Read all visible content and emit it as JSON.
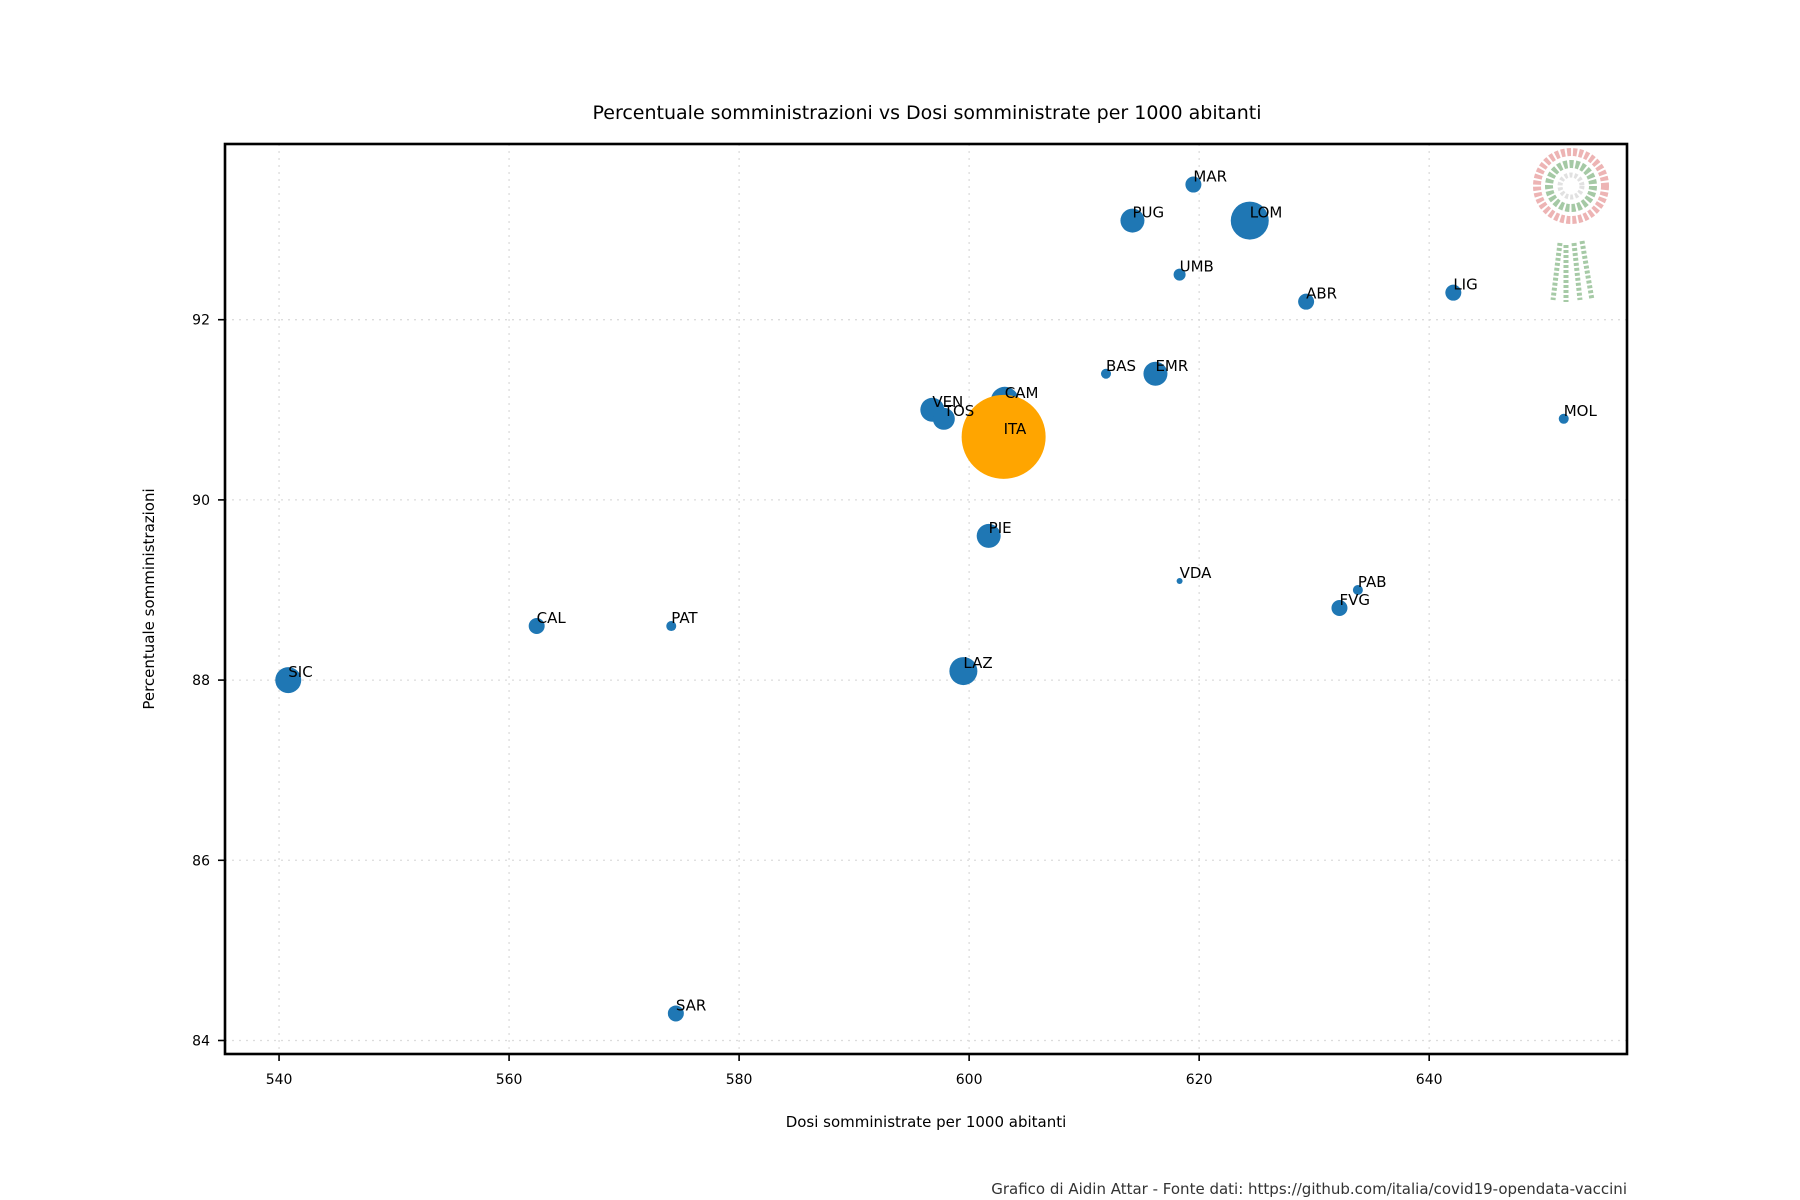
{
  "chart_data": {
    "type": "scatter",
    "title": "Percentuale somministrazioni vs Dosi somministrate per 1000 abitanti",
    "xlabel": "Dosi somministrate per 1000 abitanti",
    "ylabel": "Percentuale somministrazioni",
    "xlim": [
      535.3,
      657.2
    ],
    "ylim": [
      83.85,
      93.95
    ],
    "xticks": [
      540,
      560,
      580,
      600,
      620,
      640
    ],
    "yticks": [
      84,
      86,
      88,
      90,
      92
    ],
    "grid": true,
    "colors": {
      "region": "#1f77b4",
      "national": "#ffa500"
    },
    "points": [
      {
        "label": "SIC",
        "x": 540.8,
        "y": 88.0,
        "r": 13,
        "group": "region"
      },
      {
        "label": "CAL",
        "x": 562.4,
        "y": 88.6,
        "r": 8,
        "group": "region"
      },
      {
        "label": "PAT",
        "x": 574.1,
        "y": 88.6,
        "r": 5,
        "group": "region"
      },
      {
        "label": "SAR",
        "x": 574.5,
        "y": 84.3,
        "r": 8,
        "group": "region"
      },
      {
        "label": "LAZ",
        "x": 599.5,
        "y": 88.1,
        "r": 14,
        "group": "region"
      },
      {
        "label": "PIE",
        "x": 601.7,
        "y": 89.6,
        "r": 12,
        "group": "region"
      },
      {
        "label": "VEN",
        "x": 596.8,
        "y": 91.0,
        "r": 12,
        "group": "region"
      },
      {
        "label": "TOS",
        "x": 597.8,
        "y": 90.9,
        "r": 11,
        "group": "region"
      },
      {
        "label": "CAM",
        "x": 603.1,
        "y": 91.1,
        "r": 14,
        "group": "region"
      },
      {
        "label": "ITA",
        "x": 603.0,
        "y": 90.7,
        "r": 42,
        "group": "national"
      },
      {
        "label": "BAS",
        "x": 611.9,
        "y": 91.4,
        "r": 5,
        "group": "region"
      },
      {
        "label": "EMR",
        "x": 616.2,
        "y": 91.4,
        "r": 12,
        "group": "region"
      },
      {
        "label": "PUG",
        "x": 614.2,
        "y": 93.1,
        "r": 12,
        "group": "region"
      },
      {
        "label": "UMB",
        "x": 618.3,
        "y": 92.5,
        "r": 6,
        "group": "region"
      },
      {
        "label": "MAR",
        "x": 619.5,
        "y": 93.5,
        "r": 8,
        "group": "region"
      },
      {
        "label": "VDA",
        "x": 618.3,
        "y": 89.1,
        "r": 3,
        "group": "region"
      },
      {
        "label": "LOM",
        "x": 624.4,
        "y": 93.1,
        "r": 19,
        "group": "region"
      },
      {
        "label": "ABR",
        "x": 629.3,
        "y": 92.2,
        "r": 8,
        "group": "region"
      },
      {
        "label": "FVG",
        "x": 632.2,
        "y": 88.8,
        "r": 8,
        "group": "region"
      },
      {
        "label": "PAB",
        "x": 633.8,
        "y": 89.0,
        "r": 5,
        "group": "region"
      },
      {
        "label": "LIG",
        "x": 642.1,
        "y": 92.3,
        "r": 8,
        "group": "region"
      },
      {
        "label": "MOL",
        "x": 651.7,
        "y": 90.9,
        "r": 5,
        "group": "region"
      }
    ]
  },
  "credit": "Grafico di Aidin Attar - Fonte dati: https://github.com/italia/covid19-opendata-vaccini",
  "logo": {
    "name": "rosette-logo-icon",
    "colors": [
      "#3a8a3a",
      "#d85a5a"
    ]
  }
}
